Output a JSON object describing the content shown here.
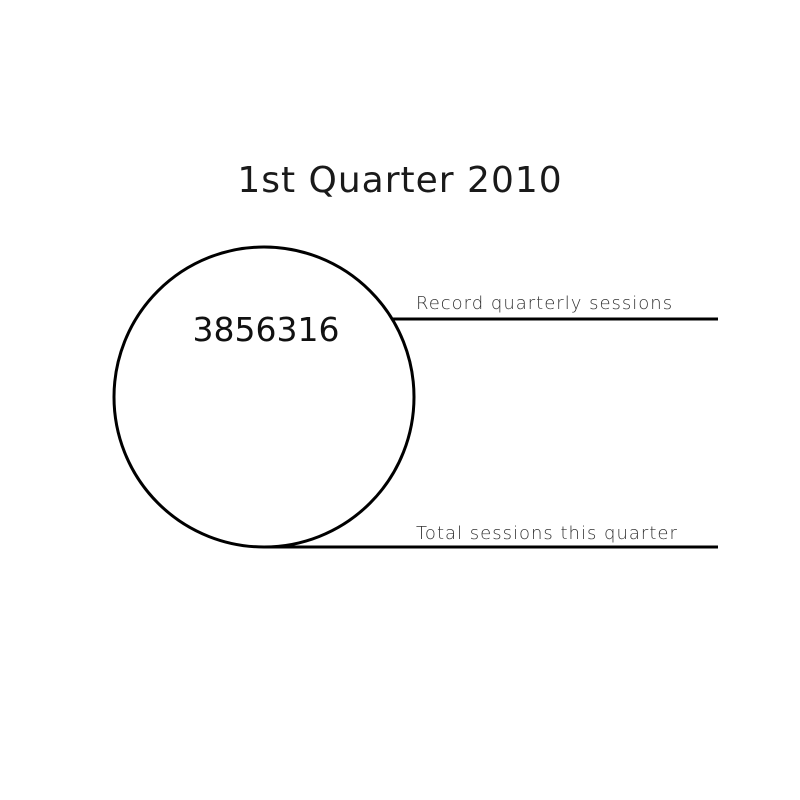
{
  "diagram": {
    "title": "1st Quarter 2010",
    "value": "3856316",
    "record_label": "Record quarterly sessions",
    "total_label": "Total sessions this quarter",
    "stroke_color": "#000000",
    "background_color": "#ffffff"
  }
}
